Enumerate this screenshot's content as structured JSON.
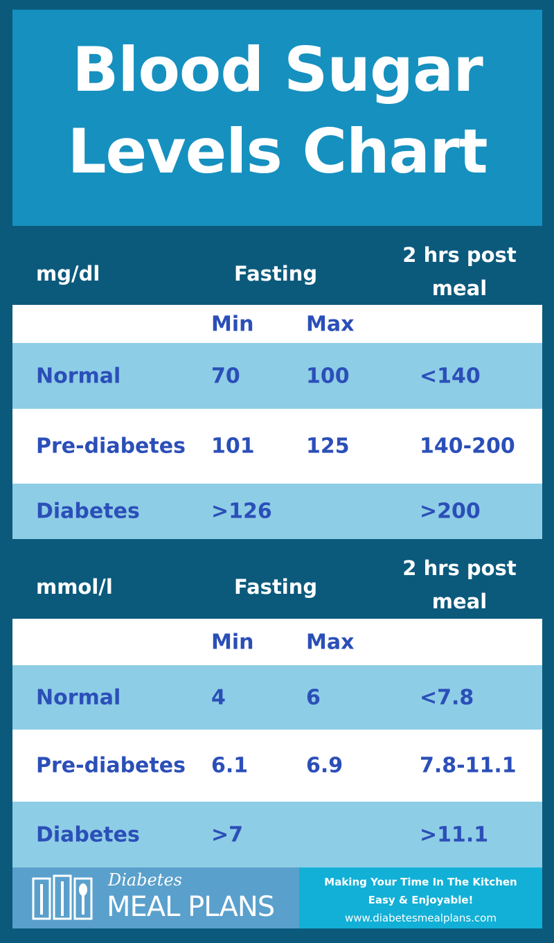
{
  "title": {
    "line1": "Blood Sugar",
    "line2": "Levels Chart"
  },
  "tables": [
    {
      "unit": "mg/dl",
      "fasting": "Fasting",
      "post_line1": "2 hrs post",
      "post_line2": "meal",
      "min": "Min",
      "max": "Max",
      "rows": [
        {
          "label": "Normal",
          "min": "70",
          "max": "100",
          "post": "<140"
        },
        {
          "label": "Pre-diabetes",
          "min": "101",
          "max": "125",
          "post": "140-200"
        },
        {
          "label": "Diabetes",
          "min": ">126",
          "max": "",
          "post": ">200"
        }
      ]
    },
    {
      "unit": "mmol/l",
      "fasting": "Fasting",
      "post_line1": "2 hrs post",
      "post_line2": "meal",
      "min": "Min",
      "max": "Max",
      "rows": [
        {
          "label": "Normal",
          "min": "4",
          "max": "6",
          "post": "<7.8"
        },
        {
          "label": "Pre-diabetes",
          "min": "6.1",
          "max": "6.9",
          "post": "7.8-11.1"
        },
        {
          "label": "Diabetes",
          "min": ">7",
          "max": "",
          "post": ">11.1"
        }
      ]
    }
  ],
  "footer": {
    "logo_script": "Diabetes",
    "logo_main": "MEAL PLANS",
    "tagline1": "Making Your Time In The Kitchen",
    "tagline2": "Easy & Enjoyable!",
    "url": "www.diabetesmealplans.com"
  },
  "colors": {
    "background": "#0b5a7c",
    "title_bg": "#1690bf",
    "row_light": "#8ecde6",
    "text_blue": "#2b4fb8"
  }
}
